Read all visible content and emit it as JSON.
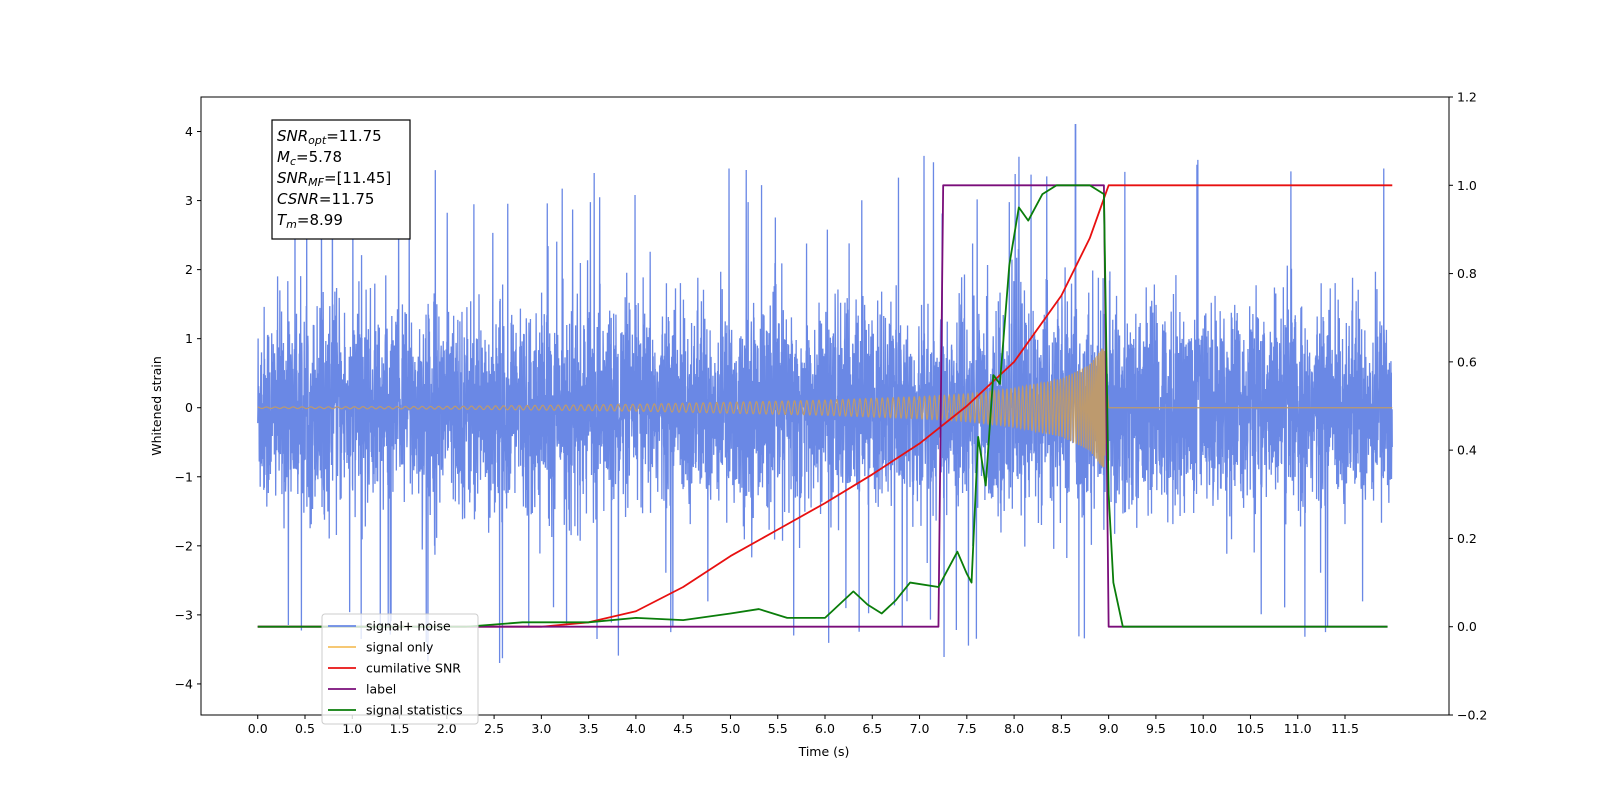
{
  "chart_data": {
    "type": "line",
    "xlabel": "Time (s)",
    "ylabel": "Whitened strain",
    "x_ticks": [
      "0.0",
      "0.5",
      "1.0",
      "1.5",
      "2.0",
      "2.5",
      "3.0",
      "3.5",
      "4.0",
      "4.5",
      "5.0",
      "5.5",
      "6.0",
      "6.5",
      "7.0",
      "7.5",
      "8.0",
      "8.5",
      "9.0",
      "9.5",
      "10.0",
      "10.5",
      "11.0",
      "11.5"
    ],
    "xlim": [
      -0.6,
      12.6
    ],
    "ylim_left": [
      -4.45,
      4.5
    ],
    "ylim_right": [
      -0.2,
      1.2
    ],
    "left_ticks": [
      -4,
      -3,
      -2,
      -1,
      0,
      1,
      2,
      3,
      4
    ],
    "right_ticks": [
      -0.2,
      0.0,
      0.2,
      0.4,
      0.6,
      0.8,
      1.0,
      1.2
    ],
    "annotation": [
      {
        "main": "SNR",
        "sub": "opt",
        "value": "=11.75"
      },
      {
        "main": "M",
        "sub": "c",
        "value": "=5.78"
      },
      {
        "main": "SNR",
        "sub": "MF",
        "value": "=[11.45]"
      },
      {
        "main": "CSNR",
        "sub": "",
        "value": "=11.75"
      },
      {
        "main": "T",
        "sub": "m",
        "value": "=8.99"
      }
    ],
    "legend_placement": "lower-left",
    "series": [
      {
        "name": "signal+ noise",
        "color": "#6a88e5",
        "axis": "left",
        "kind": "noise",
        "x_range": [
          0.0,
          12.0
        ],
        "amplitude_envelope": 2.3,
        "extreme_peak": 4.1
      },
      {
        "name": "signal only",
        "color": "#f5c060",
        "axis": "left",
        "kind": "chirp",
        "merger_time": 8.99,
        "envelope": {
          "x": [
            0.0,
            2.0,
            4.0,
            5.0,
            6.0,
            7.0,
            7.5,
            8.0,
            8.5,
            8.8,
            8.95,
            9.0
          ],
          "y": [
            0.01,
            0.02,
            0.05,
            0.08,
            0.11,
            0.16,
            0.2,
            0.28,
            0.42,
            0.62,
            0.9,
            0.0
          ]
        }
      },
      {
        "name": "cumilative SNR",
        "color": "#e81010",
        "axis": "right",
        "x": [
          0.0,
          3.0,
          3.5,
          4.0,
          4.5,
          5.0,
          5.5,
          6.0,
          6.5,
          7.0,
          7.5,
          8.0,
          8.5,
          8.8,
          8.95,
          9.0,
          12.0
        ],
        "y": [
          0.0,
          0.0,
          0.01,
          0.035,
          0.09,
          0.16,
          0.22,
          0.28,
          0.345,
          0.415,
          0.5,
          0.6,
          0.75,
          0.88,
          0.97,
          1.0,
          1.0
        ]
      },
      {
        "name": "label",
        "color": "#7a0d7a",
        "axis": "right",
        "x": [
          0.0,
          7.2,
          7.25,
          8.95,
          9.0,
          11.95
        ],
        "y": [
          0.0,
          0.0,
          1.0,
          1.0,
          0.0,
          0.0
        ]
      },
      {
        "name": "signal statistics",
        "color": "#0a7d0a",
        "axis": "right",
        "x": [
          0.0,
          2.2,
          2.8,
          3.5,
          4.0,
          4.5,
          5.0,
          5.3,
          5.6,
          6.0,
          6.3,
          6.45,
          6.6,
          6.75,
          6.9,
          7.2,
          7.3,
          7.4,
          7.5,
          7.55,
          7.62,
          7.7,
          7.78,
          7.85,
          7.95,
          8.05,
          8.15,
          8.3,
          8.45,
          8.6,
          8.8,
          8.95,
          9.0,
          9.05,
          9.15,
          11.95
        ],
        "y": [
          0.0,
          0.0,
          0.01,
          0.01,
          0.02,
          0.015,
          0.03,
          0.04,
          0.02,
          0.02,
          0.08,
          0.05,
          0.03,
          0.06,
          0.1,
          0.09,
          0.13,
          0.17,
          0.12,
          0.1,
          0.43,
          0.32,
          0.57,
          0.55,
          0.82,
          0.95,
          0.92,
          0.98,
          1.0,
          1.0,
          1.0,
          0.98,
          0.3,
          0.1,
          0.0,
          0.0
        ]
      }
    ]
  }
}
